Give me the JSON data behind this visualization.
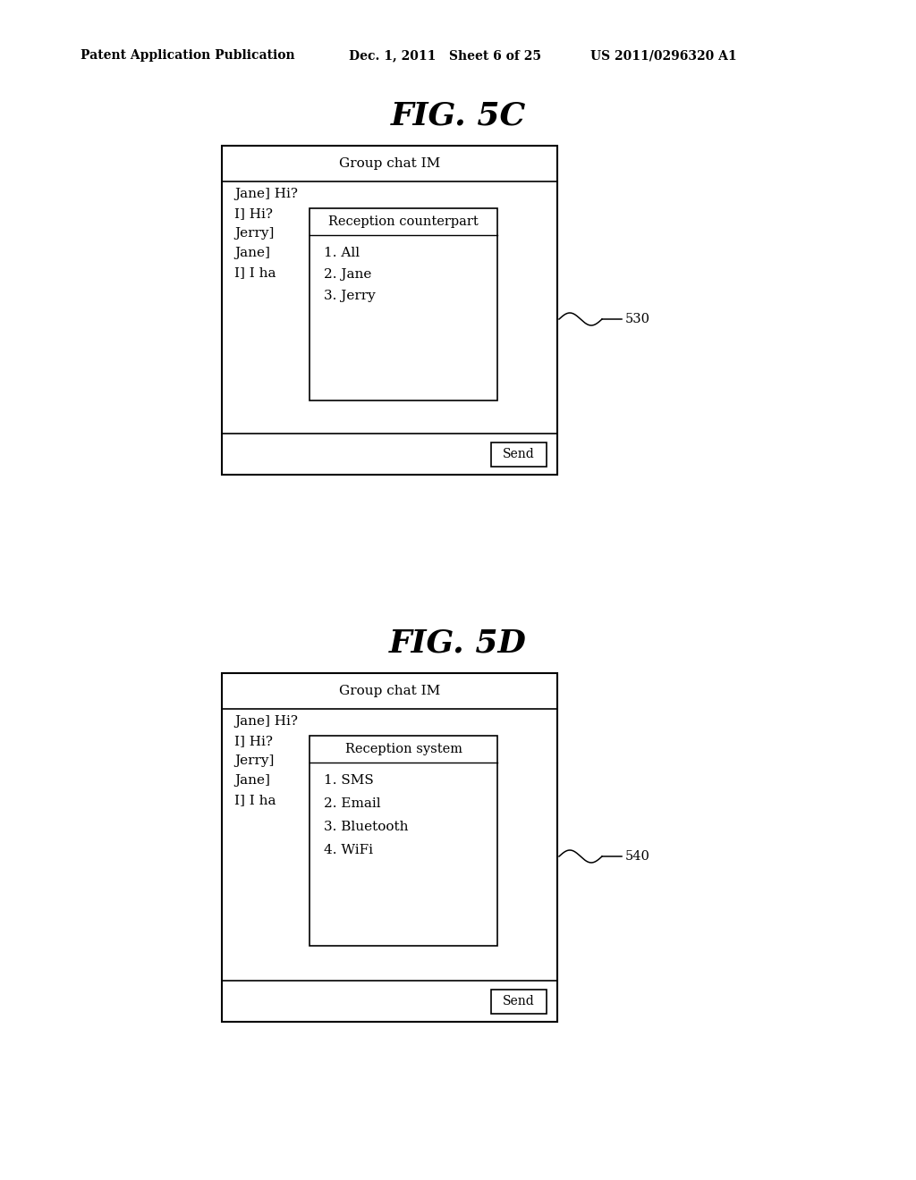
{
  "bg_color": "#ffffff",
  "header_left": "Patent Application Publication",
  "header_mid": "Dec. 1, 2011   Sheet 6 of 25",
  "header_right": "US 2011/0296320 A1",
  "fig5c_title": "FIG. 5C",
  "fig5d_title": "FIG. 5D",
  "group_chat_label": "Group chat IM",
  "chat_lines": [
    "Jane] Hi?",
    "I] Hi?",
    "Jerry]",
    "Jane]",
    "I] I ha"
  ],
  "fig5c_popup_title": "Reception counterpart",
  "fig5c_popup_items": [
    "1. All",
    "2. Jane",
    "3. Jerry"
  ],
  "fig5c_label": "530",
  "fig5d_popup_title": "Reception system",
  "fig5d_popup_items": [
    "1. SMS",
    "2. Email",
    "3. Bluetooth",
    "4. WiFi"
  ],
  "fig5d_label": "540",
  "send_button_label": "Send",
  "header_fontsize": 10,
  "title_fontsize": 26,
  "body_fontsize": 11,
  "popup_title_fontsize": 10.5,
  "popup_item_fontsize": 11
}
